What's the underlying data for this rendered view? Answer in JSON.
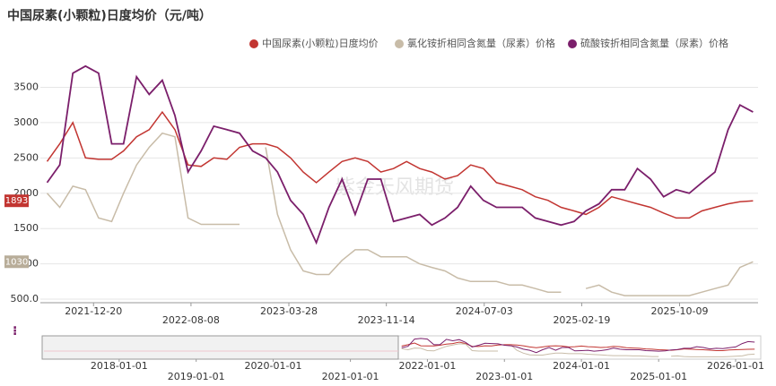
{
  "chart_data": {
    "type": "line",
    "title": "中国尿素(小颗粒)日度均价（元/吨）",
    "watermark": "紫金天风期货",
    "x": [
      "2021-09-01",
      "2021-10-01",
      "2021-11-01",
      "2021-12-01",
      "2022-01-01",
      "2022-02-01",
      "2022-03-01",
      "2022-04-01",
      "2022-05-01",
      "2022-06-01",
      "2022-07-01",
      "2022-08-01",
      "2022-09-01",
      "2022-10-01",
      "2022-11-01",
      "2022-12-01",
      "2023-01-01",
      "2023-02-01",
      "2023-03-01",
      "2023-04-01",
      "2023-05-01",
      "2023-06-01",
      "2023-07-01",
      "2023-08-01",
      "2023-09-01",
      "2023-10-01",
      "2023-11-01",
      "2023-12-01",
      "2024-01-01",
      "2024-02-01",
      "2024-03-01",
      "2024-04-01",
      "2024-05-01",
      "2024-06-01",
      "2024-07-01",
      "2024-08-01",
      "2024-09-01",
      "2024-10-01",
      "2024-11-01",
      "2024-12-01",
      "2025-01-01",
      "2025-02-01",
      "2025-03-01",
      "2025-04-01",
      "2025-05-01",
      "2025-06-01",
      "2025-07-01",
      "2025-08-01",
      "2025-09-01",
      "2025-10-01",
      "2025-11-01",
      "2025-12-01",
      "2026-01-01",
      "2026-02-01",
      "2026-03-01",
      "2026-04-01"
    ],
    "series": [
      {
        "name": "中国尿素(小颗粒)日度均价",
        "color": "#c23531",
        "values": [
          2450,
          2700,
          3000,
          2500,
          2480,
          2480,
          2600,
          2800,
          2900,
          3150,
          2900,
          2400,
          2380,
          2500,
          2480,
          2650,
          2700,
          2700,
          2650,
          2500,
          2300,
          2150,
          2300,
          2450,
          2500,
          2450,
          2300,
          2350,
          2450,
          2350,
          2300,
          2200,
          2250,
          2400,
          2350,
          2150,
          2100,
          2050,
          1950,
          1900,
          1800,
          1750,
          1700,
          1800,
          1950,
          1900,
          1850,
          1800,
          1720,
          1650,
          1650,
          1750,
          1800,
          1850,
          1880,
          1893
        ]
      },
      {
        "name": "氯化铵折相同含氮量（尿素）价格",
        "color": "#c8bca8",
        "values": [
          2000,
          1800,
          2100,
          2050,
          1650,
          1600,
          2000,
          2400,
          2650,
          2850,
          2800,
          1650,
          1560,
          1560,
          1560,
          1560,
          null,
          2650,
          1700,
          1200,
          900,
          850,
          850,
          1050,
          1200,
          1200,
          1100,
          1100,
          1100,
          1000,
          950,
          900,
          800,
          750,
          750,
          750,
          700,
          700,
          650,
          600,
          600,
          null,
          650,
          700,
          600,
          550,
          550,
          550,
          550,
          550,
          550,
          600,
          650,
          700,
          950,
          1030
        ]
      },
      {
        "name": "硫酸铵折相同含氮量（尿素）价格",
        "color": "#7b1f6b",
        "values": [
          2150,
          2400,
          3700,
          3800,
          3700,
          2700,
          2700,
          3650,
          3400,
          3600,
          3100,
          2300,
          2600,
          2950,
          2900,
          2850,
          2600,
          2500,
          2300,
          1900,
          1700,
          1300,
          1800,
          2200,
          1700,
          2200,
          2200,
          1600,
          1650,
          1700,
          1550,
          1650,
          1800,
          2100,
          1900,
          1800,
          1800,
          1800,
          1650,
          1600,
          1550,
          1600,
          1750,
          1850,
          2050,
          2050,
          2350,
          2200,
          1950,
          2050,
          2000,
          2150,
          2300,
          2900,
          3250,
          3150
        ]
      }
    ],
    "value_labels": [
      "1893",
      "1030"
    ],
    "xlim": [
      "2021-08-16",
      "2026-04-13"
    ],
    "xticks": [
      "2021-12-20",
      "2022-08-08",
      "2023-03-28",
      "2023-11-14",
      "2024-07-03",
      "2025-02-19",
      "2025-10-09"
    ],
    "ylim": [
      450,
      3950
    ],
    "yticks": [
      {
        "value": 500,
        "label": "500.0"
      },
      1000,
      1500,
      2000,
      2500,
      3000,
      3500
    ],
    "grid": true,
    "legend": "top-right",
    "navigator": {
      "xlim": [
        "2017-01-01",
        "2026-04-30"
      ],
      "xticks": [
        "2018-01-01",
        "2019-01-01",
        "2020-01-01",
        "2021-01-01",
        "2022-01-01",
        "2023-01-01",
        "2024-01-01",
        "2025-01-01",
        "2026-01-01"
      ]
    }
  }
}
